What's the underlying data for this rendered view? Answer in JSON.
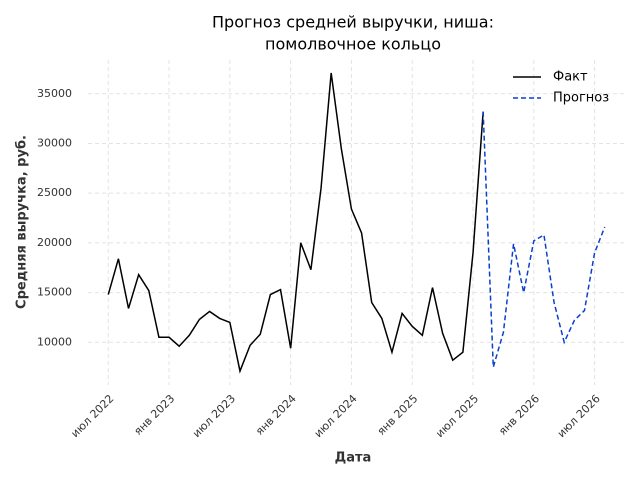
{
  "chart_data": {
    "type": "line",
    "title": [
      "Прогноз средней выручки, ниша:",
      "помолвочное кольцо"
    ],
    "x_label": "Дата",
    "y_label": "Средняя выручка, руб.",
    "x": [
      "2022-07",
      "2022-08",
      "2022-09",
      "2022-10",
      "2022-11",
      "2022-12",
      "2023-01",
      "2023-02",
      "2023-03",
      "2023-04",
      "2023-05",
      "2023-06",
      "2023-07",
      "2023-08",
      "2023-09",
      "2023-10",
      "2023-11",
      "2023-12",
      "2024-01",
      "2024-02",
      "2024-03",
      "2024-04",
      "2024-05",
      "2024-06",
      "2024-07",
      "2024-08",
      "2024-09",
      "2024-10",
      "2024-11",
      "2024-12",
      "2025-01",
      "2025-02",
      "2025-03",
      "2025-04",
      "2025-05",
      "2025-06",
      "2025-07",
      "2025-08",
      "2025-09",
      "2025-10",
      "2025-11",
      "2025-12",
      "2026-01",
      "2026-02",
      "2026-03",
      "2026-04",
      "2026-05",
      "2026-06",
      "2026-07",
      "2026-08"
    ],
    "series": [
      {
        "name": "Факт",
        "color": "#000000",
        "dash": false,
        "values": [
          14800,
          18400,
          13400,
          16800,
          15200,
          10500,
          10500,
          9600,
          10700,
          12300,
          13100,
          12400,
          12000,
          7100,
          9700,
          10800,
          14800,
          15300,
          9400,
          20000,
          17300,
          25500,
          37100,
          29500,
          23400,
          21000,
          14000,
          12400,
          9000,
          12900,
          11600,
          10700,
          15500,
          10900,
          8200,
          9000,
          19000,
          33200,
          null,
          null,
          null,
          null,
          null,
          null,
          null,
          null,
          null,
          null,
          null,
          null
        ]
      },
      {
        "name": "Прогноз",
        "color": "#0b3fd1",
        "dash": true,
        "values": [
          null,
          null,
          null,
          null,
          null,
          null,
          null,
          null,
          null,
          null,
          null,
          null,
          null,
          null,
          null,
          null,
          null,
          null,
          null,
          null,
          null,
          null,
          null,
          null,
          null,
          null,
          null,
          null,
          null,
          null,
          null,
          null,
          null,
          null,
          null,
          null,
          null,
          33200,
          7500,
          11000,
          19900,
          15000,
          20200,
          20800,
          14000,
          10000,
          12200,
          13200,
          19000,
          21600
        ]
      }
    ],
    "xlim": [
      "2022-05",
      "2026-10"
    ],
    "xticks": [
      {
        "value": "2022-07",
        "label": "июл 2022"
      },
      {
        "value": "2023-01",
        "label": "янв 2023"
      },
      {
        "value": "2023-07",
        "label": "июл 2023"
      },
      {
        "value": "2024-01",
        "label": "янв 2024"
      },
      {
        "value": "2024-07",
        "label": "июл 2024"
      },
      {
        "value": "2025-01",
        "label": "янв 2025"
      },
      {
        "value": "2025-07",
        "label": "июл 2025"
      },
      {
        "value": "2026-01",
        "label": "янв 2026"
      },
      {
        "value": "2026-07",
        "label": "июл 2026"
      }
    ],
    "ylim": [
      5700,
      38400
    ],
    "yticks": [
      10000,
      15000,
      20000,
      25000,
      30000,
      35000
    ],
    "grid": true,
    "legend": "upper right"
  }
}
